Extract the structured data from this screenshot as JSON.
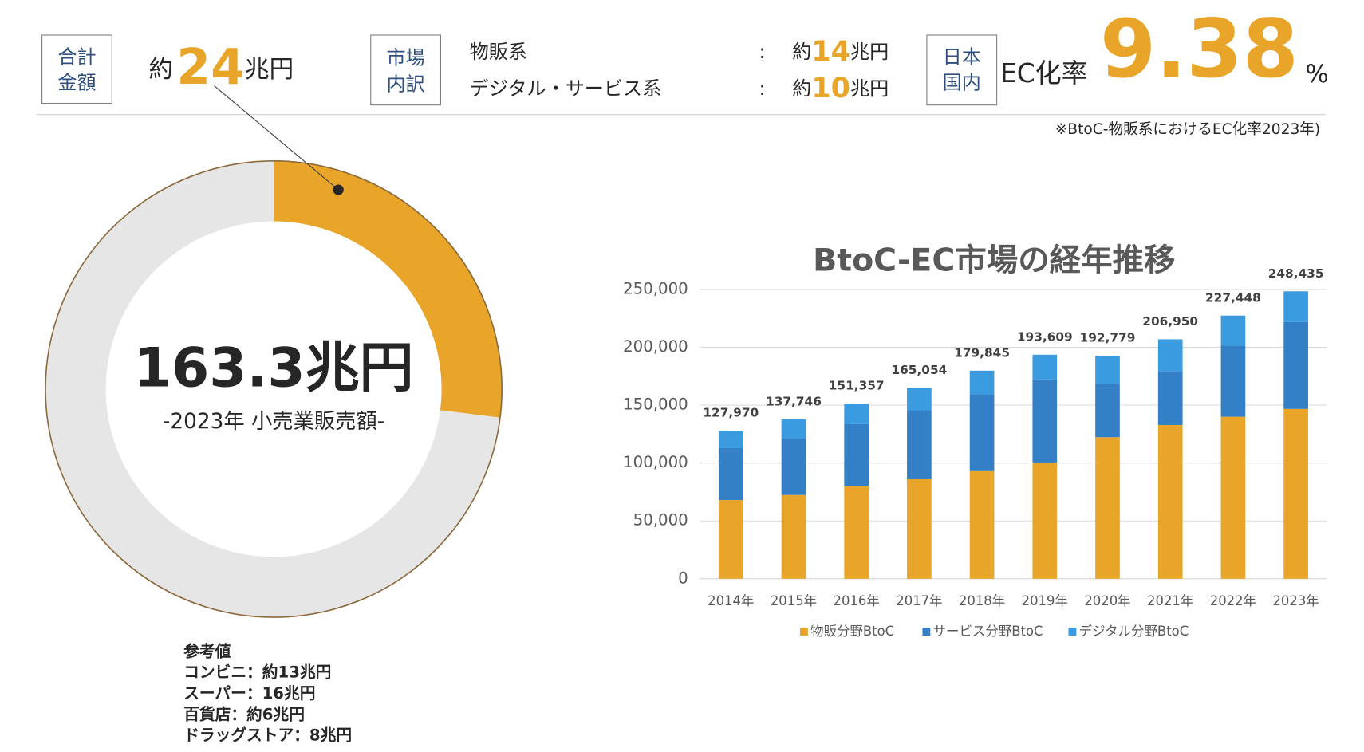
{
  "header": {
    "total": {
      "label_lines": [
        "合計",
        "金額"
      ],
      "prefix": "約",
      "amount": 24,
      "unit": "兆円"
    },
    "breakdown": {
      "label_lines": [
        "市場",
        "内訳"
      ],
      "items": [
        {
          "name": "物販系",
          "sep": ":",
          "prefix": "約",
          "amount": 14,
          "unit": "兆円"
        },
        {
          "name": "デジタル・サービス系",
          "sep": ":",
          "prefix": "約",
          "amount": 10,
          "unit": "兆円"
        }
      ]
    },
    "ec_rate": {
      "label_lines": [
        "日本",
        "国内"
      ],
      "name": "EC化率",
      "value": 9.38,
      "unit": "%",
      "note": "※BtoC-物販系におけるEC化率2023年)"
    }
  },
  "chart_data": [
    {
      "type": "pie",
      "donut": true,
      "values": [
        27,
        73
      ],
      "colors": [
        "#E9A529",
        "#E6E6E6"
      ],
      "border_color": "#8B6A3E",
      "center_title": "163.3兆円",
      "center_subtitle": "-2023年 小売業販売額-"
    },
    {
      "type": "bar",
      "stacked": true,
      "title": "BtoC-EC市場の経年推移",
      "categories": [
        "2014年",
        "2015年",
        "2016年",
        "2017年",
        "2018年",
        "2019年",
        "2020年",
        "2021年",
        "2022年",
        "2023年"
      ],
      "series": [
        {
          "name": "物販分野BtoC",
          "color": "#E9A529",
          "values": [
            68043,
            72398,
            80043,
            86008,
            92992,
            100515,
            122333,
            132865,
            139997,
            146760
          ]
        },
        {
          "name": "サービス分野BtoC",
          "color": "#3480C6",
          "values": [
            44816,
            49014,
            53532,
            59568,
            66471,
            71672,
            45832,
            46424,
            61477,
            75169
          ]
        },
        {
          "name": "デジタル分野BtoC",
          "color": "#3A9BE0",
          "values": [
            15111,
            16334,
            17782,
            19478,
            20382,
            21422,
            24614,
            27661,
            25974,
            26506
          ]
        }
      ],
      "totals": [
        127970,
        137746,
        151357,
        165054,
        179845,
        193609,
        192779,
        206950,
        227448,
        248435
      ],
      "total_labels": [
        "127,970",
        "137,746",
        "151,357",
        "165,054",
        "179,845",
        "193,609",
        "192,779",
        "206,950",
        "227,448",
        "248,435"
      ],
      "ylim": [
        0,
        250000
      ],
      "yticks": [
        0,
        {
          "value": 50000,
          "label": "50,000"
        },
        {
          "value": 100000,
          "label": "100,000"
        },
        {
          "value": 150000,
          "label": "150,000"
        },
        {
          "value": 200000,
          "label": "200,000"
        },
        {
          "value": 250000,
          "label": "250,000"
        }
      ],
      "grid": true,
      "legend": "bottom"
    }
  ],
  "reference": {
    "title": "参考値",
    "lines": [
      "コンビニ：約13兆円",
      "スーパー：16兆円",
      "百貨店：約6兆円",
      "ドラッグストア：8兆円"
    ]
  }
}
